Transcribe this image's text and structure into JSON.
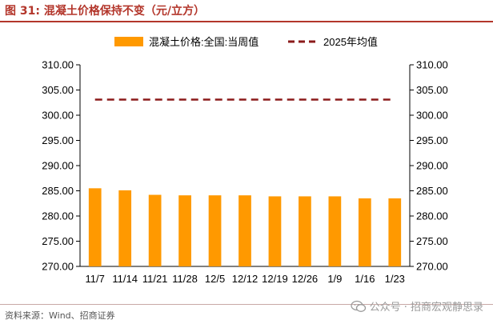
{
  "header": {
    "title": "图 31: 混凝土价格保持不变（元/立方）"
  },
  "footer": {
    "source": "资料来源：Wind、招商证券"
  },
  "watermark": {
    "text": "公众号 · 招商宏观静思录",
    "icon": "wechat-icon"
  },
  "colors": {
    "bar": "#ff9900",
    "avg_line": "#8b1a1a",
    "axis": "#000000",
    "title": "#b3362b"
  },
  "chart_data": {
    "type": "bar",
    "categories": [
      "11/7",
      "11/14",
      "11/21",
      "11/28",
      "12/5",
      "12/12",
      "12/19",
      "12/26",
      "1/9",
      "1/16",
      "1/23"
    ],
    "series": [
      {
        "name": "混凝土价格:全国:当周值",
        "type": "bar",
        "values": [
          285.5,
          285.1,
          284.2,
          284.1,
          284.1,
          284.1,
          283.9,
          283.9,
          283.9,
          283.5,
          283.5
        ]
      },
      {
        "name": "2025年均值",
        "type": "line",
        "style": "dashed",
        "values": [
          303.1,
          303.1,
          303.1,
          303.1,
          303.1,
          303.1,
          303.1,
          303.1,
          303.1,
          303.1,
          303.1
        ]
      }
    ],
    "ylim": [
      270,
      310
    ],
    "yticks": [
      "270.00",
      "275.00",
      "280.00",
      "285.00",
      "290.00",
      "295.00",
      "300.00",
      "305.00",
      "310.00"
    ],
    "ytick_values": [
      270,
      275,
      280,
      285,
      290,
      295,
      300,
      305,
      310
    ],
    "secondary_axis": true,
    "legend_position": "top",
    "grid": false
  }
}
